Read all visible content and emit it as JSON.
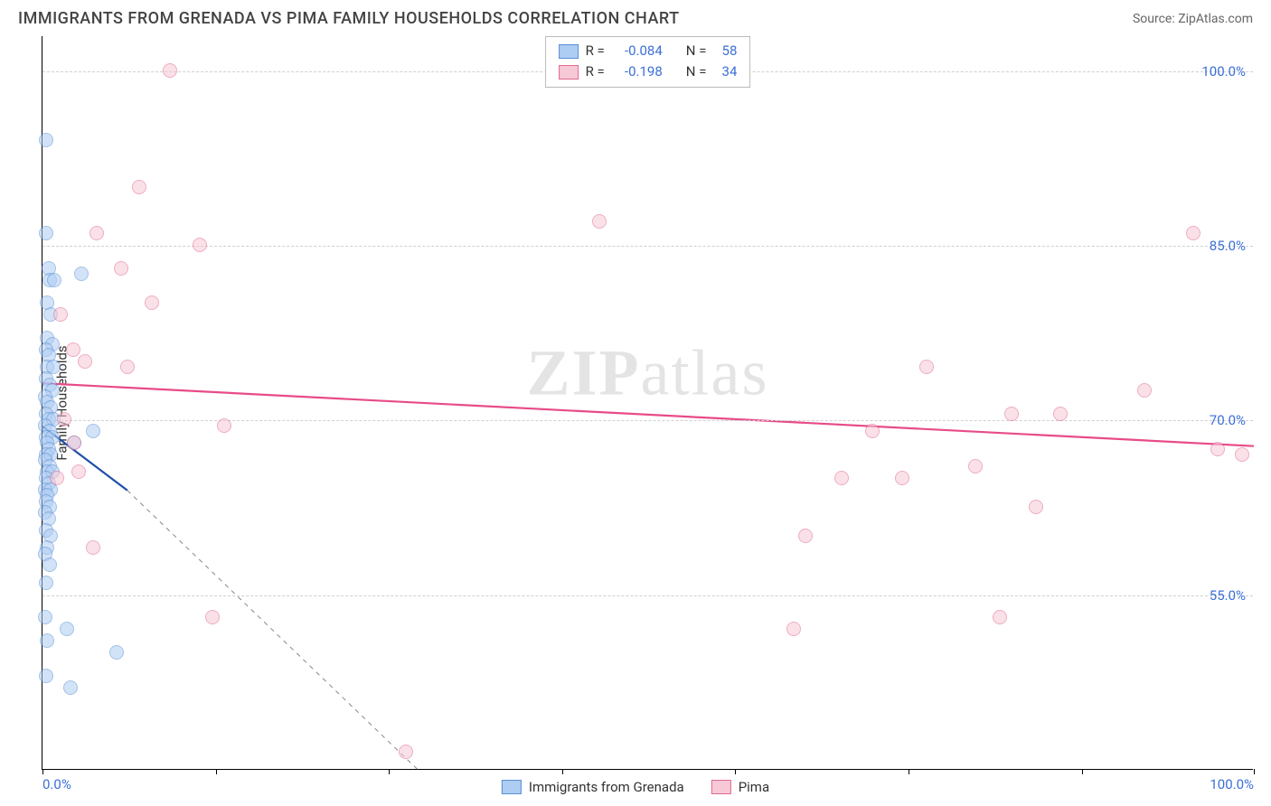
{
  "title": "IMMIGRANTS FROM GRENADA VS PIMA FAMILY HOUSEHOLDS CORRELATION CHART",
  "source_label": "Source: ZipAtlas.com",
  "watermark": {
    "zip": "ZIP",
    "atlas": "atlas"
  },
  "ylabel": "Family Households",
  "chart": {
    "type": "scatter",
    "background_color": "#ffffff",
    "grid_color": "#d0d0d0",
    "xlim": [
      0,
      100
    ],
    "ylim": [
      40,
      103
    ],
    "yticks": [
      {
        "v": 55,
        "label": "55.0%"
      },
      {
        "v": 70,
        "label": "70.0%"
      },
      {
        "v": 85,
        "label": "85.0%"
      },
      {
        "v": 100,
        "label": "100.0%"
      }
    ],
    "xticks_major": [
      0,
      14.3,
      28.6,
      42.9,
      57.2,
      71.5,
      85.8,
      100
    ],
    "xtick_labels": [
      {
        "v": 0,
        "label": "0.0%"
      },
      {
        "v": 100,
        "label": "100.0%"
      }
    ],
    "point_radius": 8,
    "point_opacity": 0.55,
    "series": [
      {
        "name": "Immigrants from Grenada",
        "color_fill": "#aecdf3",
        "color_stroke": "#5a8fd6",
        "R": "-0.084",
        "N": "58",
        "trend": {
          "x1": 0,
          "y1": 69.5,
          "x2": 7,
          "y2": 64,
          "color": "#1f4fa8",
          "width": 2.2,
          "extend_dash_to_x": 31,
          "extend_dash_to_y": 40
        },
        "points": [
          [
            0.3,
            94
          ],
          [
            0.3,
            86
          ],
          [
            0.5,
            83
          ],
          [
            0.6,
            82
          ],
          [
            1.0,
            82
          ],
          [
            3.2,
            82.5
          ],
          [
            0.4,
            80
          ],
          [
            0.7,
            79
          ],
          [
            0.4,
            77
          ],
          [
            0.8,
            76.5
          ],
          [
            0.3,
            76
          ],
          [
            0.5,
            75.5
          ],
          [
            0.4,
            74.5
          ],
          [
            0.9,
            74.5
          ],
          [
            0.3,
            73.5
          ],
          [
            0.6,
            73
          ],
          [
            0.8,
            72.5
          ],
          [
            0.2,
            72
          ],
          [
            0.4,
            71.5
          ],
          [
            0.7,
            71
          ],
          [
            0.3,
            70.5
          ],
          [
            0.5,
            70
          ],
          [
            0.9,
            70
          ],
          [
            0.2,
            69.5
          ],
          [
            0.6,
            69
          ],
          [
            0.3,
            68.5
          ],
          [
            0.8,
            68.5
          ],
          [
            0.4,
            68
          ],
          [
            2.6,
            68
          ],
          [
            4.2,
            69
          ],
          [
            0.5,
            67.5
          ],
          [
            0.3,
            67
          ],
          [
            0.7,
            67
          ],
          [
            0.2,
            66.5
          ],
          [
            0.6,
            66
          ],
          [
            0.4,
            65.5
          ],
          [
            0.8,
            65.5
          ],
          [
            0.3,
            65
          ],
          [
            0.5,
            64.5
          ],
          [
            0.2,
            64
          ],
          [
            0.7,
            64
          ],
          [
            0.4,
            63.5
          ],
          [
            0.3,
            63
          ],
          [
            0.6,
            62.5
          ],
          [
            0.2,
            62
          ],
          [
            0.5,
            61.5
          ],
          [
            0.3,
            60.5
          ],
          [
            0.7,
            60
          ],
          [
            0.4,
            59
          ],
          [
            0.2,
            58.5
          ],
          [
            0.6,
            57.5
          ],
          [
            0.3,
            56
          ],
          [
            0.2,
            53
          ],
          [
            2.0,
            52
          ],
          [
            0.4,
            51
          ],
          [
            6.1,
            50
          ],
          [
            0.3,
            48
          ],
          [
            2.3,
            47
          ]
        ]
      },
      {
        "name": "Pima",
        "color_fill": "#f7c9d6",
        "color_stroke": "#e06a91",
        "R": "-0.198",
        "N": "34",
        "trend": {
          "x1": 0,
          "y1": 73.2,
          "x2": 100,
          "y2": 67.8,
          "color": "#e84b88",
          "width": 2.2
        },
        "points": [
          [
            10.5,
            100
          ],
          [
            8,
            90
          ],
          [
            4.5,
            86
          ],
          [
            13,
            85
          ],
          [
            46,
            87
          ],
          [
            95,
            86
          ],
          [
            6.5,
            83
          ],
          [
            9,
            80
          ],
          [
            1.5,
            79
          ],
          [
            2.5,
            76
          ],
          [
            3.5,
            75
          ],
          [
            7,
            74.5
          ],
          [
            73,
            74.5
          ],
          [
            91,
            72.5
          ],
          [
            1.8,
            70
          ],
          [
            15,
            69.5
          ],
          [
            80,
            70.5
          ],
          [
            84,
            70.5
          ],
          [
            68.5,
            69
          ],
          [
            2.6,
            68
          ],
          [
            3,
            65.5
          ],
          [
            1.2,
            65
          ],
          [
            97,
            67.5
          ],
          [
            66,
            65
          ],
          [
            77,
            66
          ],
          [
            99,
            67
          ],
          [
            71,
            65
          ],
          [
            82,
            62.5
          ],
          [
            63,
            60
          ],
          [
            4.2,
            59
          ],
          [
            14,
            53
          ],
          [
            62,
            52
          ],
          [
            79,
            53
          ],
          [
            30,
            41.5
          ]
        ]
      }
    ]
  },
  "legend_top": {
    "r_label": "R =",
    "n_label": "N ="
  },
  "legend_bottom": [
    {
      "label": "Immigrants from Grenada",
      "fill": "#aecdf3",
      "stroke": "#5a8fd6"
    },
    {
      "label": "Pima",
      "fill": "#f7c9d6",
      "stroke": "#e06a91"
    }
  ]
}
